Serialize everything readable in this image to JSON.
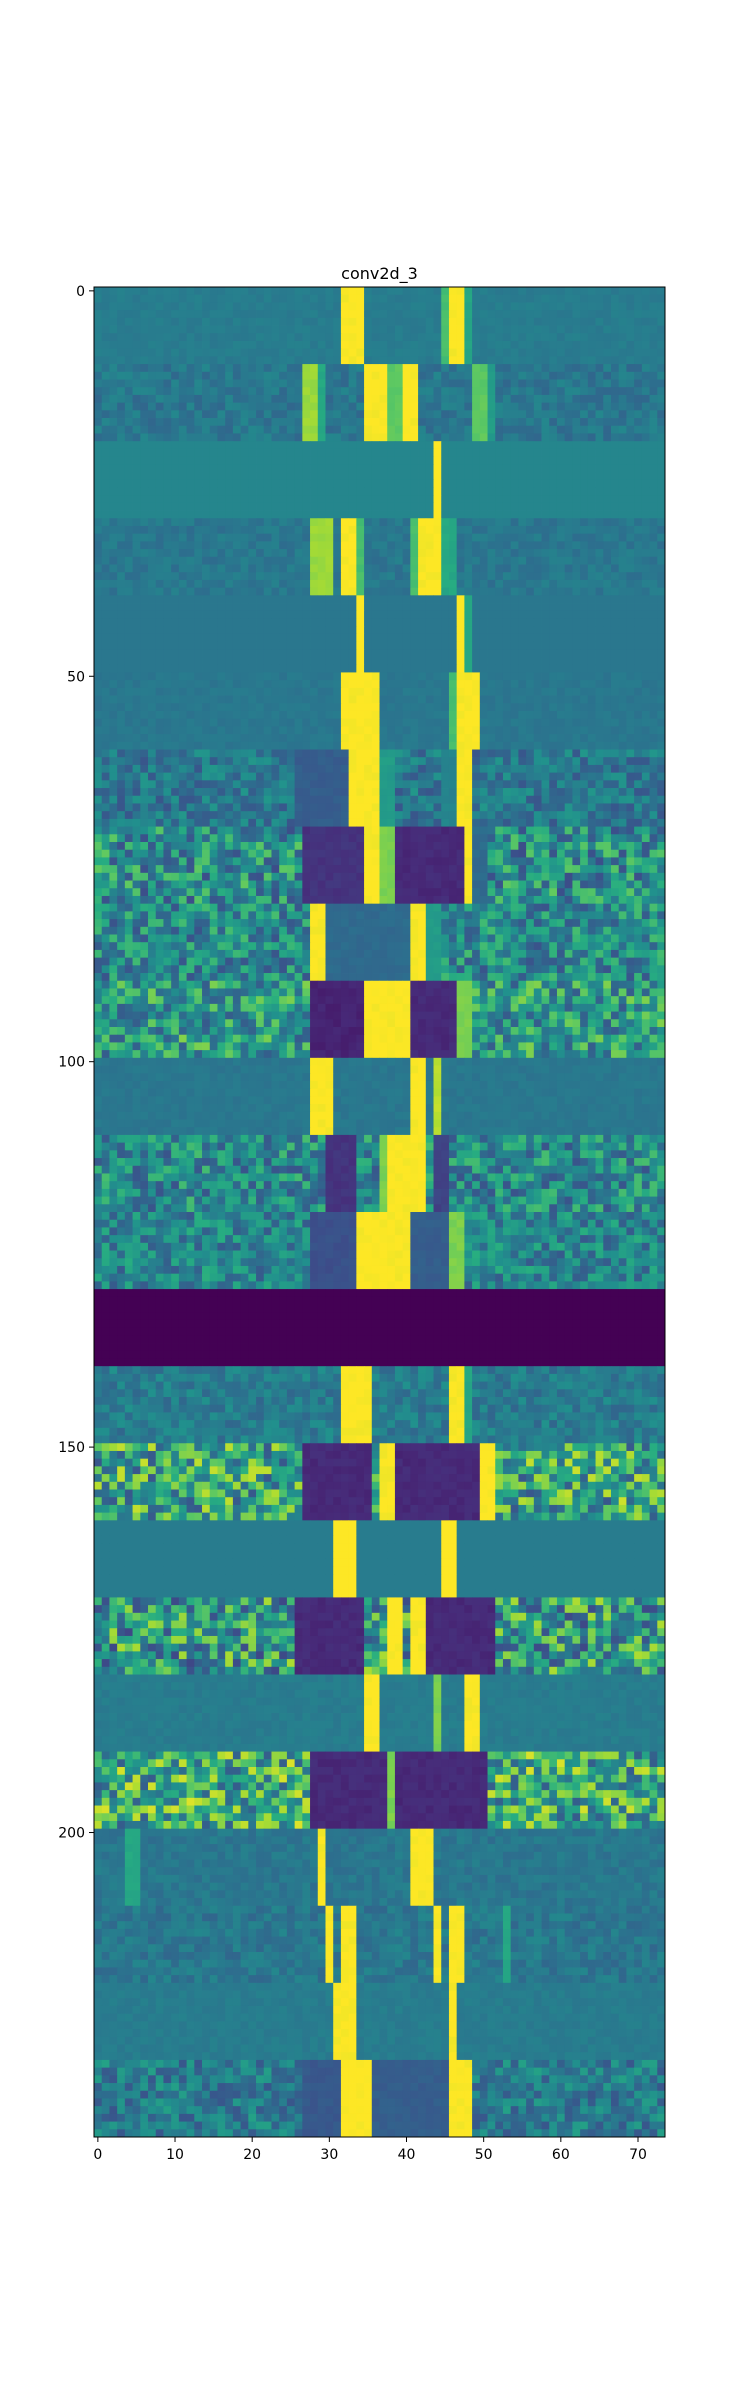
{
  "chart_data": {
    "type": "heatmap",
    "title": "conv2d_3",
    "xlabel": "",
    "ylabel": "",
    "xlim": [
      -0.5,
      73.5
    ],
    "ylim": [
      239.5,
      -0.5
    ],
    "rows": 240,
    "cols": 74,
    "colormap": "viridis",
    "color_range": [
      0,
      1
    ],
    "grid": false,
    "x_ticks": [
      0,
      10,
      20,
      30,
      40,
      50,
      60,
      70
    ],
    "y_ticks": [
      0,
      50,
      100,
      150,
      200
    ],
    "row_blocks": [
      {
        "rows": [
          0,
          9
        ],
        "base": 0.42,
        "noise": 0.01,
        "segments": [
          {
            "from": 32,
            "to": 34,
            "v": 1.0
          },
          {
            "from": 46,
            "to": 47,
            "v": 1.0
          },
          {
            "from": 45,
            "to": 45,
            "v": 0.7
          },
          {
            "from": 48,
            "to": 48,
            "v": 0.6
          }
        ]
      },
      {
        "rows": [
          10,
          19
        ],
        "base": 0.4,
        "noise": 0.03,
        "segments": [
          {
            "from": 27,
            "to": 28,
            "v": 0.85
          },
          {
            "from": 29,
            "to": 29,
            "v": 0.6
          },
          {
            "from": 35,
            "to": 37,
            "v": 1.0
          },
          {
            "from": 38,
            "to": 39,
            "v": 0.75
          },
          {
            "from": 40,
            "to": 41,
            "v": 1.0
          },
          {
            "from": 49,
            "to": 50,
            "v": 0.75
          },
          {
            "from": 51,
            "to": 51,
            "v": 0.55
          }
        ]
      },
      {
        "rows": [
          20,
          29
        ],
        "base": 0.46,
        "noise": 0.0,
        "segments": [
          {
            "from": 44,
            "to": 44,
            "v": 1.0
          }
        ]
      },
      {
        "rows": [
          30,
          39
        ],
        "base": 0.4,
        "noise": 0.02,
        "segments": [
          {
            "from": 28,
            "to": 30,
            "v": 0.85
          },
          {
            "from": 32,
            "to": 33,
            "v": 1.0
          },
          {
            "from": 34,
            "to": 34,
            "v": 0.7
          },
          {
            "from": 41,
            "to": 41,
            "v": 0.7
          },
          {
            "from": 42,
            "to": 44,
            "v": 1.0
          },
          {
            "from": 45,
            "to": 46,
            "v": 0.6
          }
        ]
      },
      {
        "rows": [
          40,
          49
        ],
        "base": 0.4,
        "noise": 0.0,
        "segments": [
          {
            "from": 34,
            "to": 34,
            "v": 1.0
          },
          {
            "from": 47,
            "to": 47,
            "v": 1.0
          },
          {
            "from": 48,
            "to": 48,
            "v": 0.6
          }
        ]
      },
      {
        "rows": [
          50,
          59
        ],
        "base": 0.4,
        "noise": 0.01,
        "segments": [
          {
            "from": 32,
            "to": 36,
            "v": 1.0
          },
          {
            "from": 46,
            "to": 46,
            "v": 0.7
          },
          {
            "from": 47,
            "to": 49,
            "v": 1.0
          }
        ]
      },
      {
        "rows": [
          60,
          69
        ],
        "base": 0.4,
        "noise": 0.06,
        "segments": [
          {
            "from": 26,
            "to": 32,
            "v": 0.3
          },
          {
            "from": 33,
            "to": 36,
            "v": 1.0
          },
          {
            "from": 37,
            "to": 38,
            "v": 0.55
          },
          {
            "from": 47,
            "to": 48,
            "v": 1.0
          },
          {
            "from": 45,
            "to": 46,
            "v": 0.45
          }
        ]
      },
      {
        "rows": [
          70,
          79
        ],
        "base": 0.5,
        "noise": 0.12,
        "segments": [
          {
            "from": 27,
            "to": 34,
            "v": 0.15
          },
          {
            "from": 35,
            "to": 36,
            "v": 1.0
          },
          {
            "from": 37,
            "to": 38,
            "v": 0.8
          },
          {
            "from": 39,
            "to": 47,
            "v": 0.12
          },
          {
            "from": 48,
            "to": 48,
            "v": 1.0
          },
          {
            "from": 49,
            "to": 50,
            "v": 0.35
          }
        ]
      },
      {
        "rows": [
          80,
          89
        ],
        "base": 0.48,
        "noise": 0.1,
        "segments": [
          {
            "from": 28,
            "to": 29,
            "v": 1.0
          },
          {
            "from": 30,
            "to": 40,
            "v": 0.35
          },
          {
            "from": 41,
            "to": 42,
            "v": 1.0
          },
          {
            "from": 43,
            "to": 44,
            "v": 0.55
          }
        ]
      },
      {
        "rows": [
          90,
          99
        ],
        "base": 0.55,
        "noise": 0.12,
        "segments": [
          {
            "from": 28,
            "to": 34,
            "v": 0.1
          },
          {
            "from": 35,
            "to": 40,
            "v": 1.0
          },
          {
            "from": 41,
            "to": 46,
            "v": 0.12
          },
          {
            "from": 47,
            "to": 48,
            "v": 0.8
          }
        ]
      },
      {
        "rows": [
          100,
          109
        ],
        "base": 0.4,
        "noise": 0.01,
        "segments": [
          {
            "from": 28,
            "to": 30,
            "v": 1.0
          },
          {
            "from": 41,
            "to": 42,
            "v": 1.0
          },
          {
            "from": 44,
            "to": 44,
            "v": 0.9
          }
        ]
      },
      {
        "rows": [
          110,
          119
        ],
        "base": 0.48,
        "noise": 0.1,
        "segments": [
          {
            "from": 30,
            "to": 33,
            "v": 0.15
          },
          {
            "from": 38,
            "to": 42,
            "v": 1.0
          },
          {
            "from": 37,
            "to": 37,
            "v": 0.8
          },
          {
            "from": 44,
            "to": 45,
            "v": 0.2
          }
        ]
      },
      {
        "rows": [
          120,
          129
        ],
        "base": 0.46,
        "noise": 0.08,
        "segments": [
          {
            "from": 28,
            "to": 33,
            "v": 0.25
          },
          {
            "from": 34,
            "to": 40,
            "v": 1.0
          },
          {
            "from": 41,
            "to": 45,
            "v": 0.3
          },
          {
            "from": 46,
            "to": 47,
            "v": 0.8
          }
        ]
      },
      {
        "rows": [
          130,
          139
        ],
        "base": 0.0,
        "noise": 0.0,
        "segments": []
      },
      {
        "rows": [
          140,
          149
        ],
        "base": 0.42,
        "noise": 0.04,
        "segments": [
          {
            "from": 32,
            "to": 35,
            "v": 1.0
          },
          {
            "from": 46,
            "to": 47,
            "v": 1.0
          },
          {
            "from": 48,
            "to": 48,
            "v": 0.6
          }
        ]
      },
      {
        "rows": [
          150,
          159
        ],
        "base": 0.6,
        "noise": 0.15,
        "segments": [
          {
            "from": 27,
            "to": 35,
            "v": 0.12
          },
          {
            "from": 37,
            "to": 38,
            "v": 1.0
          },
          {
            "from": 39,
            "to": 49,
            "v": 0.12
          },
          {
            "from": 50,
            "to": 51,
            "v": 1.0
          }
        ]
      },
      {
        "rows": [
          160,
          169
        ],
        "base": 0.42,
        "noise": 0.0,
        "segments": [
          {
            "from": 31,
            "to": 33,
            "v": 1.0
          },
          {
            "from": 45,
            "to": 46,
            "v": 1.0
          }
        ]
      },
      {
        "rows": [
          170,
          179
        ],
        "base": 0.55,
        "noise": 0.15,
        "segments": [
          {
            "from": 26,
            "to": 34,
            "v": 0.12
          },
          {
            "from": 38,
            "to": 39,
            "v": 1.0
          },
          {
            "from": 41,
            "to": 42,
            "v": 1.0
          },
          {
            "from": 43,
            "to": 51,
            "v": 0.12
          }
        ]
      },
      {
        "rows": [
          180,
          189
        ],
        "base": 0.42,
        "noise": 0.01,
        "segments": [
          {
            "from": 35,
            "to": 36,
            "v": 1.0
          },
          {
            "from": 44,
            "to": 44,
            "v": 0.8
          },
          {
            "from": 48,
            "to": 49,
            "v": 1.0
          }
        ]
      },
      {
        "rows": [
          190,
          199
        ],
        "base": 0.62,
        "noise": 0.15,
        "segments": [
          {
            "from": 28,
            "to": 37,
            "v": 0.12
          },
          {
            "from": 38,
            "to": 38,
            "v": 0.8
          },
          {
            "from": 39,
            "to": 50,
            "v": 0.12
          }
        ]
      },
      {
        "rows": [
          200,
          209
        ],
        "base": 0.4,
        "noise": 0.02,
        "segments": [
          {
            "from": 29,
            "to": 29,
            "v": 1.0
          },
          {
            "from": 41,
            "to": 43,
            "v": 1.0
          },
          {
            "from": 4,
            "to": 5,
            "v": 0.6
          }
        ]
      },
      {
        "rows": [
          210,
          219
        ],
        "base": 0.4,
        "noise": 0.03,
        "segments": [
          {
            "from": 30,
            "to": 30,
            "v": 1.0
          },
          {
            "from": 32,
            "to": 33,
            "v": 1.0
          },
          {
            "from": 44,
            "to": 44,
            "v": 1.0
          },
          {
            "from": 46,
            "to": 47,
            "v": 1.0
          },
          {
            "from": 53,
            "to": 53,
            "v": 0.6
          }
        ]
      },
      {
        "rows": [
          220,
          229
        ],
        "base": 0.42,
        "noise": 0.01,
        "segments": [
          {
            "from": 31,
            "to": 33,
            "v": 1.0
          },
          {
            "from": 46,
            "to": 46,
            "v": 1.0
          }
        ]
      },
      {
        "rows": [
          230,
          239
        ],
        "base": 0.42,
        "noise": 0.07,
        "segments": [
          {
            "from": 27,
            "to": 31,
            "v": 0.28
          },
          {
            "from": 32,
            "to": 35,
            "v": 1.0
          },
          {
            "from": 36,
            "to": 45,
            "v": 0.3
          },
          {
            "from": 46,
            "to": 48,
            "v": 1.0
          }
        ]
      }
    ]
  }
}
